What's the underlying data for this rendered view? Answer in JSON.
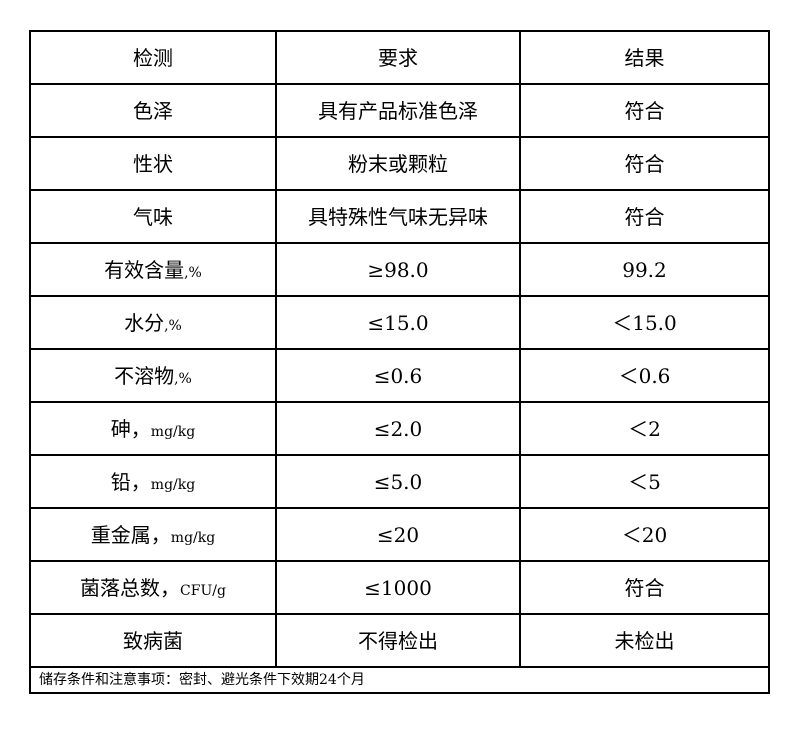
{
  "table": {
    "headers": [
      "检测",
      "要求",
      "结果"
    ],
    "rows": [
      {
        "item": "色泽",
        "unit": "",
        "requirement": "具有产品标准色泽",
        "result": "符合"
      },
      {
        "item": "性状",
        "unit": "",
        "requirement": "粉末或颗粒",
        "result": "符合"
      },
      {
        "item": "气味",
        "unit": "",
        "requirement": "具特殊性气味无异味",
        "result": "符合"
      },
      {
        "item": "有效含量",
        "unit": ",%",
        "requirement": "≥98.0",
        "result": "99.2"
      },
      {
        "item": "水分",
        "unit": ",%",
        "requirement": "≤15.0",
        "result": "＜15.0"
      },
      {
        "item": "不溶物",
        "unit": ",%",
        "requirement": "≤0.6",
        "result": "＜0.6"
      },
      {
        "item": "砷，",
        "unit": "mg/kg",
        "requirement": "≤2.0",
        "result": "＜2"
      },
      {
        "item": "铅，",
        "unit": "mg/kg",
        "requirement": "≤5.0",
        "result": "＜5"
      },
      {
        "item": "重金属，",
        "unit": "mg/kg",
        "requirement": "≤20",
        "result": "＜20"
      },
      {
        "item": "菌落总数，",
        "unit": "CFU/g",
        "requirement": "≤1000",
        "result": "符合"
      },
      {
        "item": "致病菌",
        "unit": "",
        "requirement": "不得检出",
        "result": "未检出"
      }
    ],
    "footer": "储存条件和注意事项：密封、避光条件下效期24个月"
  }
}
